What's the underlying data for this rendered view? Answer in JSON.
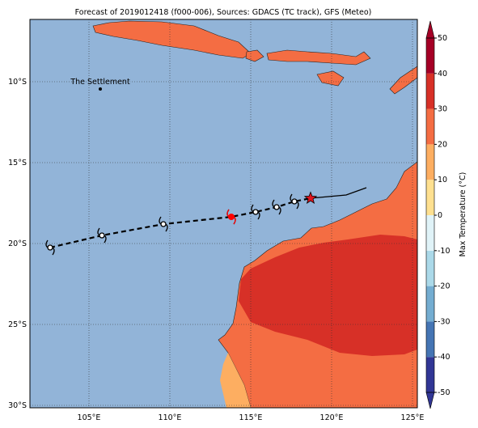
{
  "map": {
    "title": "Forecast of 2019012418 (f000-006), Sources: GDACS (TC track), GFS (Meteo)",
    "xlim": [
      101.35,
      125.3
    ],
    "ylim": [
      -30.15,
      -6.15
    ],
    "xticks": [
      {
        "value": 105,
        "label": "105°E"
      },
      {
        "value": 110,
        "label": "110°E"
      },
      {
        "value": 115,
        "label": "115°E"
      },
      {
        "value": 120,
        "label": "120°E"
      },
      {
        "value": 125,
        "label": "125°E"
      }
    ],
    "yticks": [
      {
        "value": -10,
        "label": "10°S"
      },
      {
        "value": -15,
        "label": "15°S"
      },
      {
        "value": -20,
        "label": "20°S"
      },
      {
        "value": -25,
        "label": "25°S"
      },
      {
        "value": -30,
        "label": "30°S"
      }
    ],
    "grid": true
  },
  "places": [
    {
      "name": "The Settlement",
      "lon": 105.7,
      "lat": -10.45
    }
  ],
  "track": {
    "forecast": {
      "lon": [
        102.6,
        105.8,
        109.6,
        113.8,
        115.3,
        116.6,
        117.7,
        118.7
      ],
      "lat": [
        -20.25,
        -19.5,
        -18.8,
        -18.35,
        -18.05,
        -17.75,
        -17.4,
        -17.2
      ]
    },
    "observed": {
      "lon": [
        118.7,
        120.9,
        122.15
      ],
      "lat": [
        -17.2,
        -17.0,
        -16.55
      ]
    },
    "current": {
      "lon": 113.8,
      "lat": -18.35,
      "color": "#ff0000"
    },
    "star": {
      "lon": 118.7,
      "lat": -17.2,
      "color": "#e0141e"
    }
  },
  "colorbar": {
    "label": "Max Temperature (°C)",
    "lim": [
      -50,
      50
    ],
    "ticks": [
      50,
      40,
      30,
      20,
      10,
      0,
      -10,
      -20,
      -30,
      -40,
      -50
    ],
    "colors": [
      "#313695",
      "#4575b4",
      "#74add1",
      "#abd9e9",
      "#e0f3f8",
      "#fee090",
      "#fdae61",
      "#f46d43",
      "#d73027",
      "#a50026"
    ]
  }
}
